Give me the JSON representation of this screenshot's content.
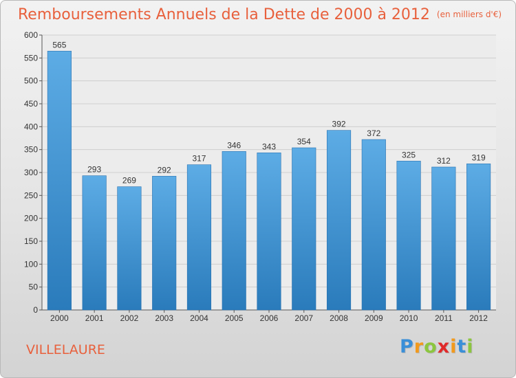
{
  "header": {
    "title": "Remboursements Annuels de la Dette de 2000 à 2012",
    "unit": "(en milliers d'€)"
  },
  "footer": {
    "commune": "VILLELAURE",
    "logo_text": "Proxiti"
  },
  "colors": {
    "title": "#e8603c",
    "bar_top": "#5dace5",
    "bar_bottom": "#2a7bbb"
  },
  "chart_data": {
    "type": "bar",
    "title": "Remboursements Annuels de la Dette de 2000 à 2012",
    "categories": [
      "2000",
      "2001",
      "2002",
      "2003",
      "2004",
      "2005",
      "2006",
      "2007",
      "2008",
      "2009",
      "2010",
      "2011",
      "2012"
    ],
    "values": [
      565,
      293,
      269,
      292,
      317,
      346,
      343,
      354,
      392,
      372,
      325,
      312,
      319
    ],
    "ylim": [
      0,
      600
    ],
    "yticks": [
      0,
      50,
      100,
      150,
      200,
      250,
      300,
      350,
      400,
      450,
      500,
      550,
      600
    ],
    "grid": true,
    "data_labels": true
  }
}
